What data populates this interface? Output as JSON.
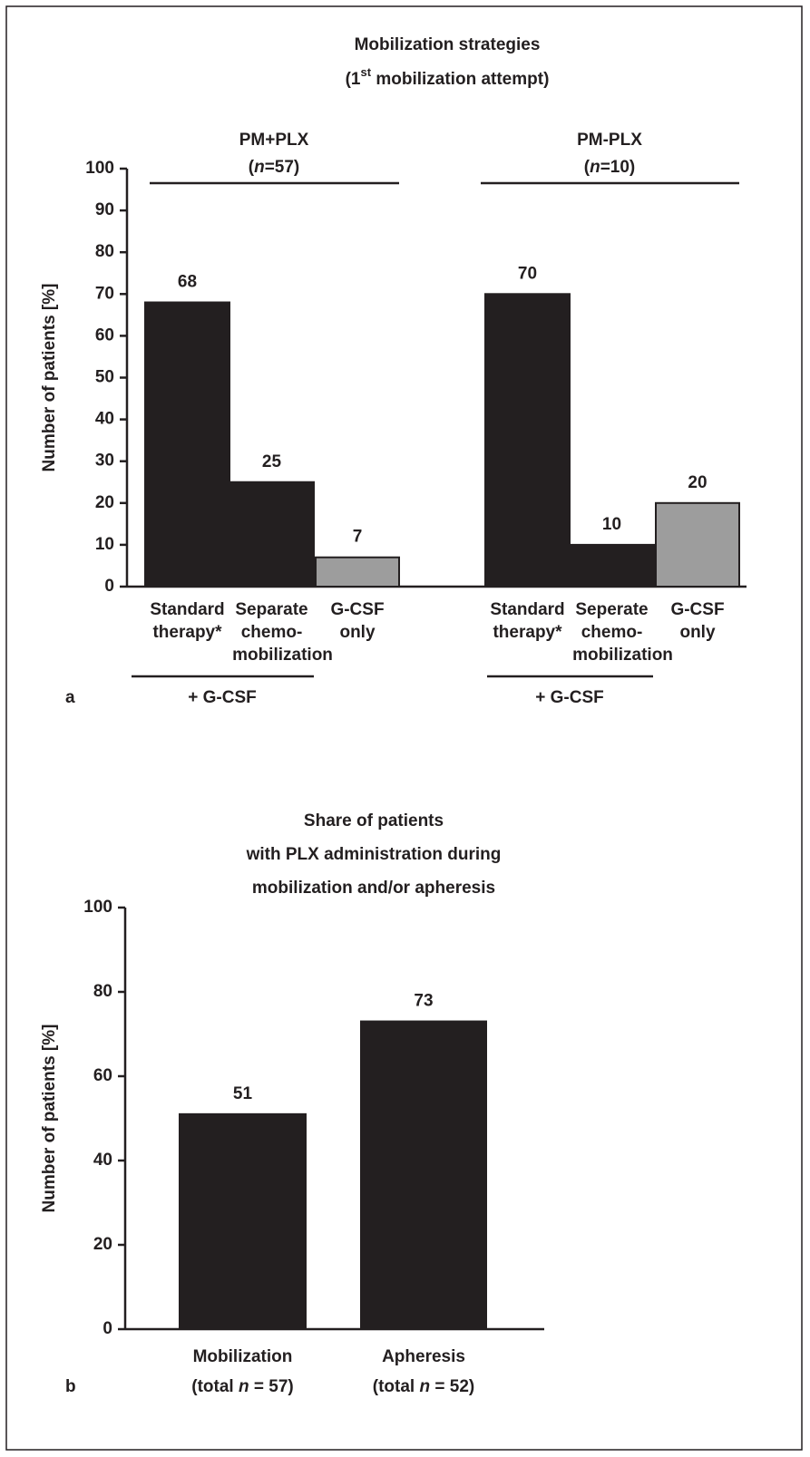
{
  "chart_data": [
    {
      "type": "bar",
      "panel_label": "a",
      "title": "Mobilization strategies",
      "subtitle": [
        "(1",
        "st",
        " mobilization attempt)"
      ],
      "ylabel": "Number of patients [%]",
      "groups": [
        {
          "name": "PM+PLX",
          "n": [
            "(",
            "n",
            "=57)"
          ]
        },
        {
          "name": "PM-PLX",
          "n": [
            "(",
            "n",
            "=10)"
          ]
        }
      ],
      "categories": [
        [
          "Standard",
          "therapy*"
        ],
        [
          "Separate",
          "chemo-",
          "mobilization"
        ],
        [
          "G-CSF",
          "only"
        ],
        [
          "Standard",
          "therapy*"
        ],
        [
          "Seperate",
          "chemo-",
          "mobilization"
        ],
        [
          "G-CSF",
          "only"
        ]
      ],
      "values": [
        68,
        25,
        7,
        70,
        10,
        20
      ],
      "colors": [
        "#231f20",
        "#231f20",
        "#9d9d9d",
        "#231f20",
        "#231f20",
        "#9d9d9d"
      ],
      "annotations": [
        "+ G-CSF",
        "+ G-CSF"
      ],
      "ylim": [
        0,
        100
      ],
      "yticks": [
        0,
        10,
        20,
        30,
        40,
        50,
        60,
        70,
        80,
        90,
        100
      ]
    },
    {
      "type": "bar",
      "panel_label": "b",
      "title": [
        "Share of patients",
        "with PLX administration during",
        "mobilization and/or apheresis"
      ],
      "ylabel": "Number of patients [%]",
      "categories": [
        "Mobilization",
        "Apheresis"
      ],
      "sublabels": [
        [
          "(total ",
          "n",
          " = 57)"
        ],
        [
          "(total ",
          "n",
          " = 52)"
        ]
      ],
      "values": [
        51,
        73
      ],
      "color": "#231f20",
      "ylim": [
        0,
        100
      ],
      "yticks": [
        0,
        20,
        40,
        60,
        80,
        100
      ]
    }
  ]
}
